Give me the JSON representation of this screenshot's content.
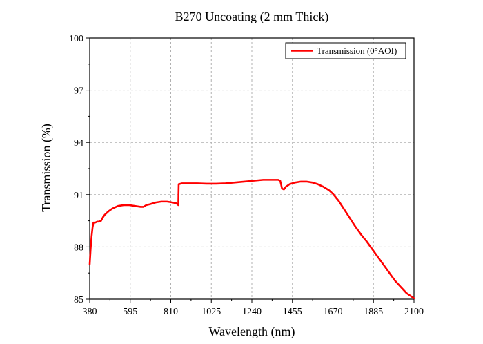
{
  "chart_data": {
    "type": "line",
    "title": "B270 Uncoating (2 mm  Thick)",
    "xlabel": "Wavelength (nm)",
    "ylabel": "Transmission (%)",
    "xlim": [
      380,
      2100
    ],
    "ylim": [
      85,
      100
    ],
    "xticks": [
      380,
      595,
      810,
      1025,
      1240,
      1455,
      1670,
      1885,
      2100
    ],
    "yticks": [
      85,
      88,
      91,
      94,
      97,
      100
    ],
    "grid": true,
    "legend_position": "top-right",
    "series": [
      {
        "name": "Transmission (0°AOI)",
        "color": "#ff0000",
        "x": [
          380,
          385,
          390,
          395,
          400,
          410,
          420,
          430,
          440,
          450,
          460,
          480,
          500,
          530,
          560,
          590,
          620,
          650,
          665,
          680,
          700,
          730,
          760,
          790,
          820,
          840,
          850,
          851,
          852,
          870,
          900,
          950,
          1000,
          1050,
          1100,
          1150,
          1200,
          1250,
          1300,
          1350,
          1380,
          1390,
          1395,
          1400,
          1410,
          1420,
          1440,
          1470,
          1500,
          1530,
          1560,
          1590,
          1620,
          1650,
          1670,
          1700,
          1730,
          1760,
          1790,
          1820,
          1850,
          1880,
          1910,
          1940,
          1970,
          2000,
          2030,
          2060,
          2080,
          2100
        ],
        "y": [
          87.0,
          87.9,
          88.6,
          89.1,
          89.4,
          89.4,
          89.45,
          89.45,
          89.5,
          89.7,
          89.85,
          90.05,
          90.2,
          90.35,
          90.4,
          90.4,
          90.35,
          90.3,
          90.3,
          90.4,
          90.45,
          90.55,
          90.6,
          90.6,
          90.55,
          90.5,
          90.4,
          91.0,
          91.6,
          91.65,
          91.65,
          91.65,
          91.63,
          91.63,
          91.65,
          91.7,
          91.75,
          91.8,
          91.85,
          91.85,
          91.85,
          91.8,
          91.6,
          91.35,
          91.3,
          91.45,
          91.6,
          91.7,
          91.75,
          91.75,
          91.7,
          91.6,
          91.45,
          91.25,
          91.05,
          90.65,
          90.15,
          89.65,
          89.15,
          88.7,
          88.3,
          87.85,
          87.4,
          86.95,
          86.5,
          86.05,
          85.7,
          85.35,
          85.2,
          85.05
        ]
      }
    ]
  }
}
